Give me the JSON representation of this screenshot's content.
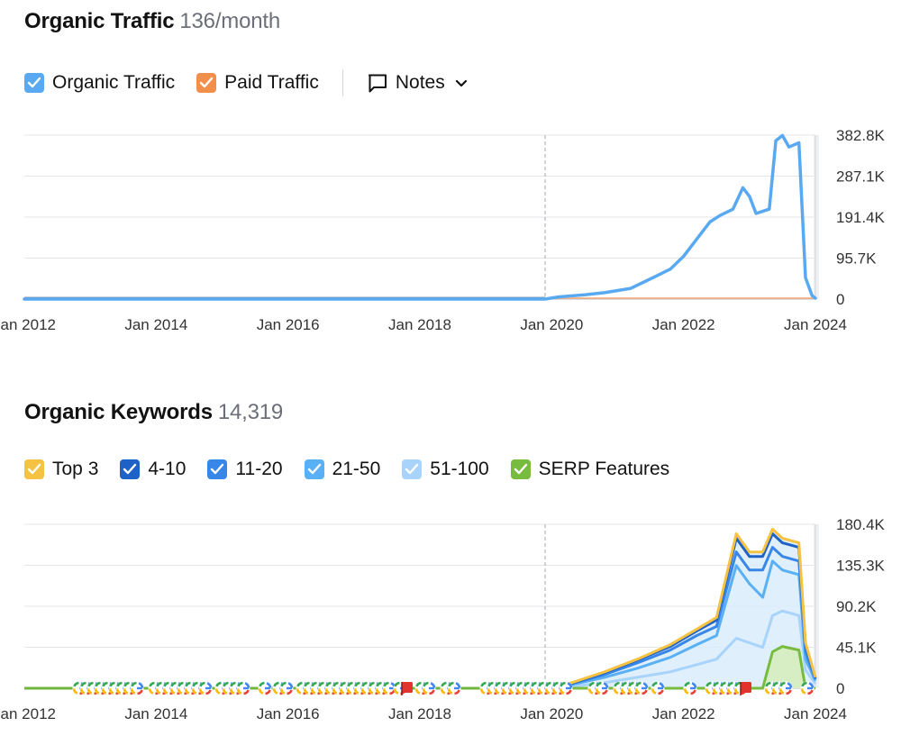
{
  "traffic": {
    "title": "Organic Traffic",
    "metric": "136/month",
    "legend": [
      {
        "label": "Organic Traffic",
        "color": "#59a9f2"
      },
      {
        "label": "Paid Traffic",
        "color": "#f38f4c"
      }
    ],
    "notes_label": "Notes"
  },
  "keywords": {
    "title": "Organic Keywords",
    "metric": "14,319",
    "legend": [
      {
        "label": "Top 3",
        "color": "#f5c242"
      },
      {
        "label": "4-10",
        "color": "#1f62c7"
      },
      {
        "label": "11-20",
        "color": "#3886e8"
      },
      {
        "label": "21-50",
        "color": "#5ab0f5"
      },
      {
        "label": "51-100",
        "color": "#a8d3fb"
      },
      {
        "label": "SERP Features",
        "color": "#77bb3f"
      }
    ]
  },
  "chart_data": [
    {
      "type": "line",
      "title": "Organic Traffic",
      "x_ticks": [
        "Jan 2012",
        "Jan 2014",
        "Jan 2016",
        "Jan 2018",
        "Jan 2020",
        "Jan 2022",
        "Jan 2024"
      ],
      "y_ticks": [
        "0",
        "95.7K",
        "191.4K",
        "287.1K",
        "382.8K"
      ],
      "ylim": [
        0,
        382800
      ],
      "xlim": [
        2012.0,
        2024.0
      ],
      "grid": true,
      "marker_year": 2019.9,
      "series": [
        {
          "name": "Organic Traffic",
          "color": "#59a9f2",
          "points": [
            [
              2012.0,
              0
            ],
            [
              2019.9,
              0
            ],
            [
              2020.1,
              5000
            ],
            [
              2020.5,
              10000
            ],
            [
              2020.8,
              15000
            ],
            [
              2021.0,
              20000
            ],
            [
              2021.2,
              25000
            ],
            [
              2021.4,
              40000
            ],
            [
              2021.6,
              55000
            ],
            [
              2021.8,
              70000
            ],
            [
              2022.0,
              100000
            ],
            [
              2022.2,
              140000
            ],
            [
              2022.4,
              180000
            ],
            [
              2022.55,
              195000
            ],
            [
              2022.75,
              210000
            ],
            [
              2022.9,
              260000
            ],
            [
              2023.0,
              240000
            ],
            [
              2023.1,
              200000
            ],
            [
              2023.3,
              210000
            ],
            [
              2023.4,
              370000
            ],
            [
              2023.5,
              382000
            ],
            [
              2023.6,
              355000
            ],
            [
              2023.75,
              365000
            ],
            [
              2023.85,
              50000
            ],
            [
              2023.95,
              8000
            ],
            [
              2024.0,
              2000
            ]
          ]
        },
        {
          "name": "Paid Traffic",
          "color": "#f38f4c",
          "points": [
            [
              2012.0,
              0
            ],
            [
              2024.0,
              0
            ]
          ]
        }
      ]
    },
    {
      "type": "area",
      "title": "Organic Keywords",
      "x_ticks": [
        "Jan 2012",
        "Jan 2014",
        "Jan 2016",
        "Jan 2018",
        "Jan 2020",
        "Jan 2022",
        "Jan 2024"
      ],
      "y_ticks": [
        "0",
        "45.1K",
        "90.2K",
        "135.3K",
        "180.4K"
      ],
      "ylim": [
        0,
        180400
      ],
      "xlim": [
        2012.0,
        2024.0
      ],
      "grid": true,
      "marker_year": 2019.9,
      "x": [
        2012.0,
        2019.9,
        2020.3,
        2020.8,
        2021.3,
        2021.8,
        2022.2,
        2022.5,
        2022.8,
        2023.0,
        2023.2,
        2023.35,
        2023.5,
        2023.75,
        2023.85,
        2024.0
      ],
      "series": [
        {
          "name": "Top 3",
          "color": "#f5c242",
          "values": [
            0,
            0,
            6000,
            18000,
            32000,
            48000,
            65000,
            78000,
            170000,
            150000,
            150000,
            175000,
            165000,
            160000,
            50000,
            12000
          ]
        },
        {
          "name": "4-10",
          "color": "#1f62c7",
          "values": [
            0,
            0,
            5500,
            17000,
            31000,
            46000,
            63000,
            75000,
            165000,
            145000,
            145000,
            170000,
            160000,
            155000,
            48000,
            11000
          ]
        },
        {
          "name": "11-20",
          "color": "#3886e8",
          "values": [
            0,
            0,
            5000,
            15000,
            28000,
            42000,
            58000,
            68000,
            150000,
            130000,
            130000,
            155000,
            145000,
            140000,
            40000,
            10000
          ]
        },
        {
          "name": "21-50",
          "color": "#5ab0f5",
          "values": [
            0,
            0,
            4000,
            12000,
            22000,
            34000,
            48000,
            58000,
            135000,
            115000,
            100000,
            140000,
            130000,
            125000,
            32000,
            8000
          ]
        },
        {
          "name": "51-100",
          "color": "#a8d3fb",
          "values": [
            0,
            0,
            2000,
            6000,
            12000,
            18000,
            26000,
            32000,
            55000,
            50000,
            45000,
            80000,
            85000,
            80000,
            20000,
            5000
          ]
        },
        {
          "name": "SERP Features",
          "color": "#77bb3f",
          "values": [
            0,
            0,
            0,
            0,
            0,
            0,
            0,
            0,
            0,
            0,
            0,
            40000,
            46000,
            42000,
            0,
            0
          ]
        }
      ]
    }
  ]
}
